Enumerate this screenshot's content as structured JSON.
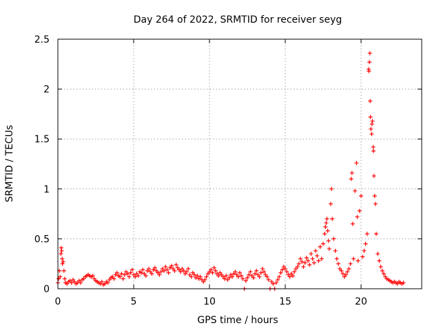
{
  "chart_data": {
    "type": "scatter",
    "title": "Day 264 of 2022, SRMTID for receiver seyg",
    "xlabel": "GPS time / hours",
    "ylabel": "SRMTID / TECUs",
    "xlim": [
      0,
      24
    ],
    "ylim": [
      0,
      2.5
    ],
    "xticks": [
      0,
      5,
      10,
      15,
      20
    ],
    "xtick_labels": [
      "0",
      "5",
      "10",
      "15",
      "20"
    ],
    "yticks": [
      0,
      0.5,
      1,
      1.5,
      2,
      2.5
    ],
    "ytick_labels": [
      "0",
      "0.5",
      "1",
      "1.5",
      "2",
      "2.5"
    ],
    "grid": true,
    "marker": "+",
    "color": "#ff0000",
    "series": [
      {
        "name": "SRMTID",
        "points": [
          [
            0.0,
            0.06
          ],
          [
            0.05,
            0.1
          ],
          [
            0.1,
            0.18
          ],
          [
            0.15,
            0.12
          ],
          [
            0.2,
            0.35
          ],
          [
            0.22,
            0.41
          ],
          [
            0.25,
            0.38
          ],
          [
            0.28,
            0.3
          ],
          [
            0.3,
            0.25
          ],
          [
            0.35,
            0.27
          ],
          [
            0.4,
            0.18
          ],
          [
            0.45,
            0.1
          ],
          [
            0.5,
            0.06
          ],
          [
            0.6,
            0.05
          ],
          [
            0.7,
            0.07
          ],
          [
            0.8,
            0.08
          ],
          [
            0.9,
            0.06
          ],
          [
            1.0,
            0.09
          ],
          [
            1.1,
            0.07
          ],
          [
            1.2,
            0.05
          ],
          [
            1.3,
            0.06
          ],
          [
            1.4,
            0.08
          ],
          [
            1.5,
            0.06
          ],
          [
            1.6,
            0.09
          ],
          [
            1.7,
            0.1
          ],
          [
            1.8,
            0.12
          ],
          [
            1.9,
            0.13
          ],
          [
            2.0,
            0.14
          ],
          [
            2.1,
            0.13
          ],
          [
            2.2,
            0.12
          ],
          [
            2.3,
            0.13
          ],
          [
            2.4,
            0.1
          ],
          [
            2.5,
            0.08
          ],
          [
            2.6,
            0.07
          ],
          [
            2.7,
            0.06
          ],
          [
            2.8,
            0.05
          ],
          [
            2.9,
            0.07
          ],
          [
            3.0,
            0.04
          ],
          [
            3.1,
            0.05
          ],
          [
            3.2,
            0.07
          ],
          [
            3.3,
            0.06
          ],
          [
            3.4,
            0.09
          ],
          [
            3.5,
            0.11
          ],
          [
            3.6,
            0.12
          ],
          [
            3.7,
            0.1
          ],
          [
            3.8,
            0.14
          ],
          [
            3.9,
            0.16
          ],
          [
            4.0,
            0.13
          ],
          [
            4.1,
            0.12
          ],
          [
            4.2,
            0.15
          ],
          [
            4.3,
            0.1
          ],
          [
            4.4,
            0.14
          ],
          [
            4.5,
            0.17
          ],
          [
            4.6,
            0.15
          ],
          [
            4.7,
            0.12
          ],
          [
            4.8,
            0.16
          ],
          [
            4.9,
            0.19
          ],
          [
            5.0,
            0.14
          ],
          [
            5.1,
            0.12
          ],
          [
            5.2,
            0.15
          ],
          [
            5.3,
            0.13
          ],
          [
            5.4,
            0.17
          ],
          [
            5.5,
            0.16
          ],
          [
            5.6,
            0.19
          ],
          [
            5.7,
            0.15
          ],
          [
            5.8,
            0.13
          ],
          [
            5.9,
            0.18
          ],
          [
            6.0,
            0.2
          ],
          [
            6.1,
            0.17
          ],
          [
            6.2,
            0.15
          ],
          [
            6.3,
            0.19
          ],
          [
            6.4,
            0.21
          ],
          [
            6.5,
            0.18
          ],
          [
            6.6,
            0.16
          ],
          [
            6.7,
            0.14
          ],
          [
            6.8,
            0.17
          ],
          [
            6.9,
            0.2
          ],
          [
            7.0,
            0.18
          ],
          [
            7.1,
            0.22
          ],
          [
            7.2,
            0.19
          ],
          [
            7.3,
            0.16
          ],
          [
            7.4,
            0.21
          ],
          [
            7.5,
            0.23
          ],
          [
            7.6,
            0.2
          ],
          [
            7.7,
            0.18
          ],
          [
            7.8,
            0.24
          ],
          [
            7.9,
            0.21
          ],
          [
            8.0,
            0.19
          ],
          [
            8.1,
            0.17
          ],
          [
            8.2,
            0.2
          ],
          [
            8.3,
            0.18
          ],
          [
            8.4,
            0.15
          ],
          [
            8.5,
            0.17
          ],
          [
            8.6,
            0.2
          ],
          [
            8.7,
            0.14
          ],
          [
            8.8,
            0.12
          ],
          [
            8.9,
            0.16
          ],
          [
            9.0,
            0.14
          ],
          [
            9.1,
            0.11
          ],
          [
            9.2,
            0.13
          ],
          [
            9.3,
            0.1
          ],
          [
            9.4,
            0.12
          ],
          [
            9.5,
            0.09
          ],
          [
            9.6,
            0.07
          ],
          [
            9.7,
            0.09
          ],
          [
            9.8,
            0.12
          ],
          [
            9.9,
            0.15
          ],
          [
            10.0,
            0.17
          ],
          [
            10.1,
            0.19
          ],
          [
            10.2,
            0.16
          ],
          [
            10.3,
            0.21
          ],
          [
            10.4,
            0.18
          ],
          [
            10.5,
            0.15
          ],
          [
            10.6,
            0.13
          ],
          [
            10.7,
            0.16
          ],
          [
            10.8,
            0.14
          ],
          [
            10.9,
            0.12
          ],
          [
            11.0,
            0.1
          ],
          [
            11.1,
            0.13
          ],
          [
            11.2,
            0.09
          ],
          [
            11.3,
            0.11
          ],
          [
            11.4,
            0.14
          ],
          [
            11.5,
            0.12
          ],
          [
            11.6,
            0.15
          ],
          [
            11.7,
            0.17
          ],
          [
            11.8,
            0.14
          ],
          [
            11.9,
            0.12
          ],
          [
            12.0,
            0.16
          ],
          [
            12.1,
            0.13
          ],
          [
            12.2,
            0.1
          ],
          [
            12.3,
            0.0
          ],
          [
            12.4,
            0.08
          ],
          [
            12.5,
            0.11
          ],
          [
            12.6,
            0.14
          ],
          [
            12.7,
            0.17
          ],
          [
            12.8,
            0.13
          ],
          [
            12.9,
            0.11
          ],
          [
            13.0,
            0.15
          ],
          [
            13.1,
            0.18
          ],
          [
            13.2,
            0.14
          ],
          [
            13.3,
            0.12
          ],
          [
            13.4,
            0.16
          ],
          [
            13.5,
            0.2
          ],
          [
            13.6,
            0.17
          ],
          [
            13.7,
            0.14
          ],
          [
            13.8,
            0.12
          ],
          [
            13.9,
            0.09
          ],
          [
            14.0,
            0.0
          ],
          [
            14.1,
            0.07
          ],
          [
            14.2,
            0.05
          ],
          [
            14.3,
            0.0
          ],
          [
            14.4,
            0.06
          ],
          [
            14.5,
            0.09
          ],
          [
            14.6,
            0.12
          ],
          [
            14.7,
            0.16
          ],
          [
            14.8,
            0.19
          ],
          [
            14.9,
            0.22
          ],
          [
            15.0,
            0.2
          ],
          [
            15.1,
            0.17
          ],
          [
            15.2,
            0.14
          ],
          [
            15.3,
            0.12
          ],
          [
            15.4,
            0.15
          ],
          [
            15.5,
            0.13
          ],
          [
            15.6,
            0.17
          ],
          [
            15.7,
            0.2
          ],
          [
            15.8,
            0.22
          ],
          [
            15.9,
            0.25
          ],
          [
            16.0,
            0.3
          ],
          [
            16.1,
            0.27
          ],
          [
            16.2,
            0.22
          ],
          [
            16.3,
            0.26
          ],
          [
            16.4,
            0.31
          ],
          [
            16.5,
            0.28
          ],
          [
            16.6,
            0.24
          ],
          [
            16.7,
            0.35
          ],
          [
            16.8,
            0.3
          ],
          [
            16.9,
            0.26
          ],
          [
            17.0,
            0.38
          ],
          [
            17.1,
            0.33
          ],
          [
            17.2,
            0.28
          ],
          [
            17.3,
            0.42
          ],
          [
            17.4,
            0.3
          ],
          [
            17.5,
            0.45
          ],
          [
            17.6,
            0.55
          ],
          [
            17.65,
            0.62
          ],
          [
            17.7,
            0.66
          ],
          [
            17.75,
            0.7
          ],
          [
            17.8,
            0.58
          ],
          [
            17.85,
            0.48
          ],
          [
            17.9,
            0.4
          ],
          [
            18.0,
            0.85
          ],
          [
            18.05,
            1.0
          ],
          [
            18.1,
            0.7
          ],
          [
            18.2,
            0.5
          ],
          [
            18.3,
            0.38
          ],
          [
            18.4,
            0.3
          ],
          [
            18.5,
            0.25
          ],
          [
            18.6,
            0.2
          ],
          [
            18.7,
            0.18
          ],
          [
            18.8,
            0.15
          ],
          [
            18.9,
            0.12
          ],
          [
            19.0,
            0.14
          ],
          [
            19.1,
            0.17
          ],
          [
            19.2,
            0.2
          ],
          [
            19.3,
            0.25
          ],
          [
            19.35,
            1.1
          ],
          [
            19.4,
            1.16
          ],
          [
            19.45,
            0.65
          ],
          [
            19.5,
            0.3
          ],
          [
            19.6,
            0.98
          ],
          [
            19.7,
            1.26
          ],
          [
            19.75,
            0.72
          ],
          [
            19.8,
            0.28
          ],
          [
            19.9,
            0.78
          ],
          [
            20.0,
            0.93
          ],
          [
            20.1,
            0.32
          ],
          [
            20.2,
            0.38
          ],
          [
            20.3,
            0.45
          ],
          [
            20.4,
            0.55
          ],
          [
            20.5,
            2.2
          ],
          [
            20.52,
            2.18
          ],
          [
            20.55,
            2.27
          ],
          [
            20.58,
            2.36
          ],
          [
            20.6,
            1.88
          ],
          [
            20.62,
            1.72
          ],
          [
            20.65,
            1.6
          ],
          [
            20.7,
            1.55
          ],
          [
            20.72,
            1.65
          ],
          [
            20.75,
            1.68
          ],
          [
            20.8,
            1.42
          ],
          [
            20.82,
            1.38
          ],
          [
            20.85,
            1.13
          ],
          [
            20.9,
            0.93
          ],
          [
            20.95,
            0.85
          ],
          [
            21.0,
            0.55
          ],
          [
            21.1,
            0.35
          ],
          [
            21.2,
            0.28
          ],
          [
            21.3,
            0.22
          ],
          [
            21.4,
            0.18
          ],
          [
            21.5,
            0.15
          ],
          [
            21.6,
            0.12
          ],
          [
            21.7,
            0.1
          ],
          [
            21.8,
            0.09
          ],
          [
            21.9,
            0.08
          ],
          [
            22.0,
            0.07
          ],
          [
            22.1,
            0.06
          ],
          [
            22.2,
            0.07
          ],
          [
            22.3,
            0.06
          ],
          [
            22.4,
            0.05
          ],
          [
            22.5,
            0.07
          ],
          [
            22.6,
            0.06
          ],
          [
            22.7,
            0.05
          ],
          [
            22.8,
            0.06
          ]
        ]
      }
    ]
  }
}
